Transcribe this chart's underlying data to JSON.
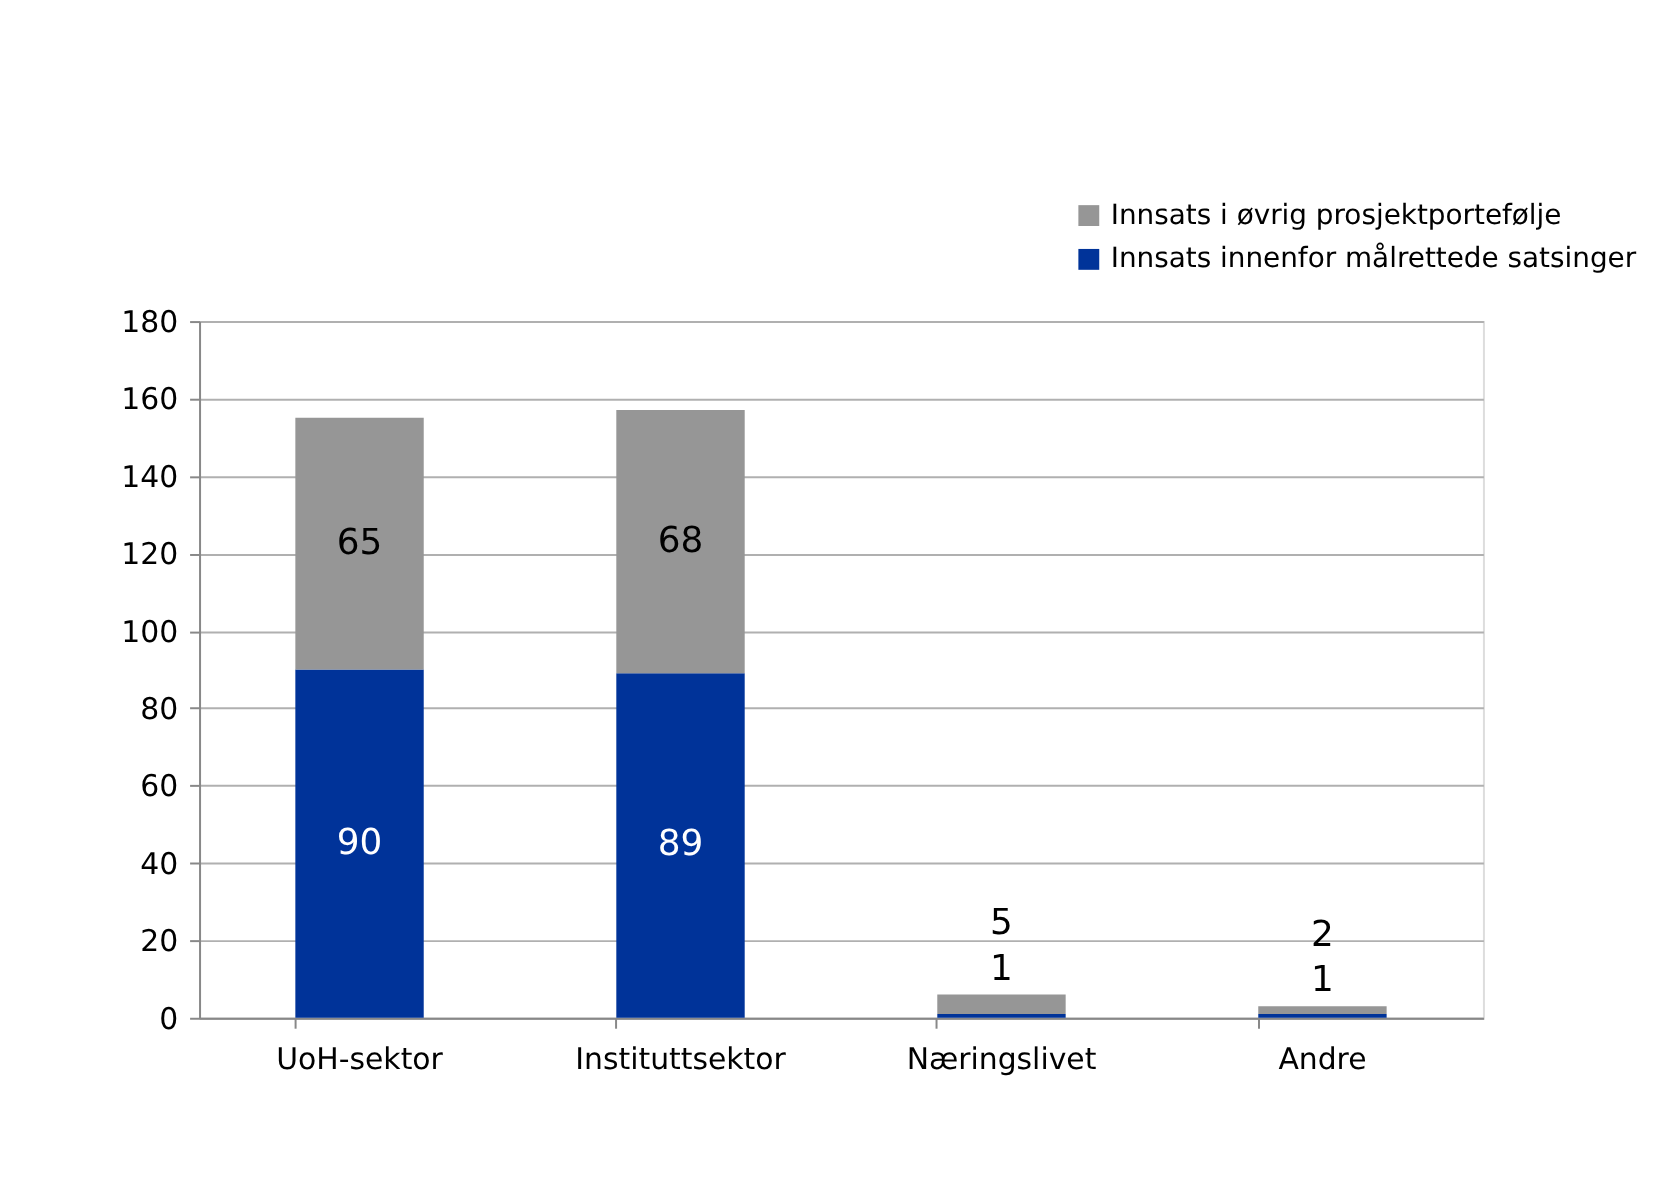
{
  "chart_data": {
    "type": "bar",
    "stacked": true,
    "categories": [
      "UoH-sektor",
      "Instituttsektor",
      "Næringslivet",
      "Andre"
    ],
    "series": [
      {
        "name": "Innsats innenfor målrettede satsinger",
        "color": "#003399",
        "values": [
          90,
          89,
          1,
          1
        ]
      },
      {
        "name": "Innsats i øvrig prosjektportefølje",
        "color": "#969696",
        "values": [
          65,
          68,
          5,
          2
        ]
      }
    ],
    "ylim": [
      0,
      180
    ],
    "yticks": [
      0,
      20,
      40,
      60,
      80,
      100,
      120,
      140,
      160,
      180
    ],
    "grid": "y",
    "legend": "top right",
    "data_labels": true
  }
}
